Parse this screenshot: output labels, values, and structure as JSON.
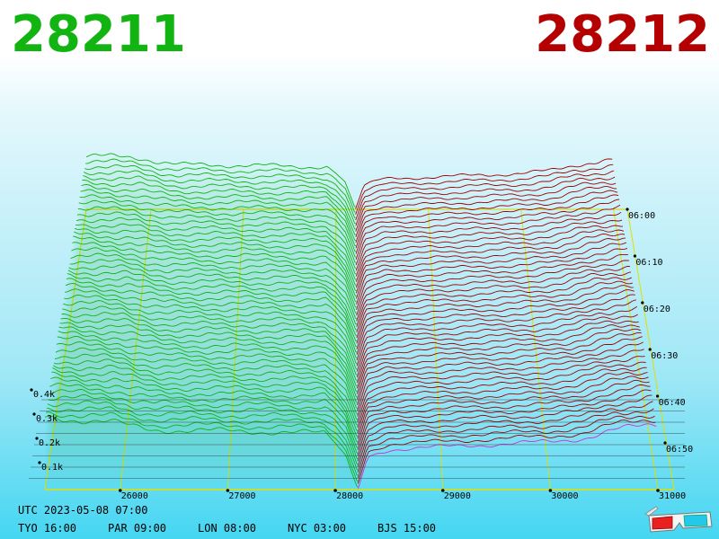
{
  "header": {
    "best_bid": "28211",
    "best_ask": "28212"
  },
  "chart_data": {
    "type": "area",
    "view": "3d-depth-of-market",
    "x_axis": {
      "ticks": [
        "26000",
        "27000",
        "28000",
        "29000",
        "30000",
        "31000"
      ],
      "range": [
        25300,
        31150
      ]
    },
    "z_axis": {
      "ticks": [
        "0.1k",
        "0.2k",
        "0.3k",
        "0.4k"
      ],
      "range": [
        0,
        1000
      ]
    },
    "time_axis": {
      "ticks": [
        "06:00",
        "06:10",
        "06:20",
        "06:30",
        "06:40",
        "06:50"
      ]
    },
    "series": [
      {
        "name": "28211",
        "side": "bid",
        "color": "#11b411"
      },
      {
        "name": "28212",
        "side": "ask",
        "color": "#a00000"
      }
    ],
    "latest_ask_color": "#cc33cc",
    "mid_price": 28211.5,
    "bid_depth_profile": [
      [
        25300,
        840
      ],
      [
        25900,
        800
      ],
      [
        26100,
        740
      ],
      [
        26300,
        700
      ],
      [
        27300,
        680
      ],
      [
        27900,
        660
      ],
      [
        28000,
        560
      ],
      [
        28100,
        400
      ],
      [
        28211,
        5
      ]
    ],
    "ask_depth_profile": [
      [
        28212,
        5
      ],
      [
        28300,
        380
      ],
      [
        28500,
        470
      ],
      [
        29300,
        520
      ],
      [
        30000,
        560
      ],
      [
        30300,
        600
      ],
      [
        30600,
        700
      ],
      [
        31000,
        770
      ]
    ],
    "grid": true,
    "legend": "none"
  },
  "footer": {
    "utc": "UTC 2023-05-08 07:00",
    "cities": [
      "TYO 16:00",
      "PAR 09:00",
      "LON 08:00",
      "NYC 03:00",
      "BJS 15:00"
    ]
  }
}
